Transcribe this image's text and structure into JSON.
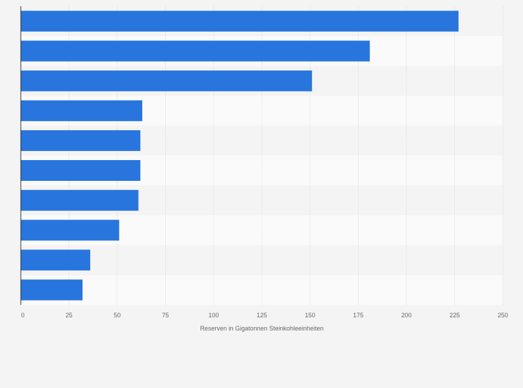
{
  "chart_data": {
    "type": "bar",
    "orientation": "horizontal",
    "categories": [
      "",
      "",
      "",
      "",
      "",
      "",
      "",
      "",
      "",
      ""
    ],
    "values": [
      227,
      181,
      151,
      63,
      62,
      62,
      61,
      51,
      36,
      32
    ],
    "title": "",
    "xlabel": "Reserven in Gigatonnen Steinkohleeinheiten",
    "ylabel": "",
    "xlim": [
      0,
      250
    ],
    "ticks": [
      "0",
      "25",
      "50",
      "75",
      "100",
      "125",
      "150",
      "175",
      "200",
      "225",
      "250"
    ],
    "tick_values": [
      0,
      25,
      50,
      75,
      100,
      125,
      150,
      175,
      200,
      225,
      250
    ],
    "grid": true,
    "bar_color": "#2876dd",
    "band_colors": [
      "#f4f4f4",
      "#fafafa"
    ],
    "gridline_color": "#dddddd",
    "tick_label_color": "#666666",
    "axis_line_color": "#333333"
  }
}
